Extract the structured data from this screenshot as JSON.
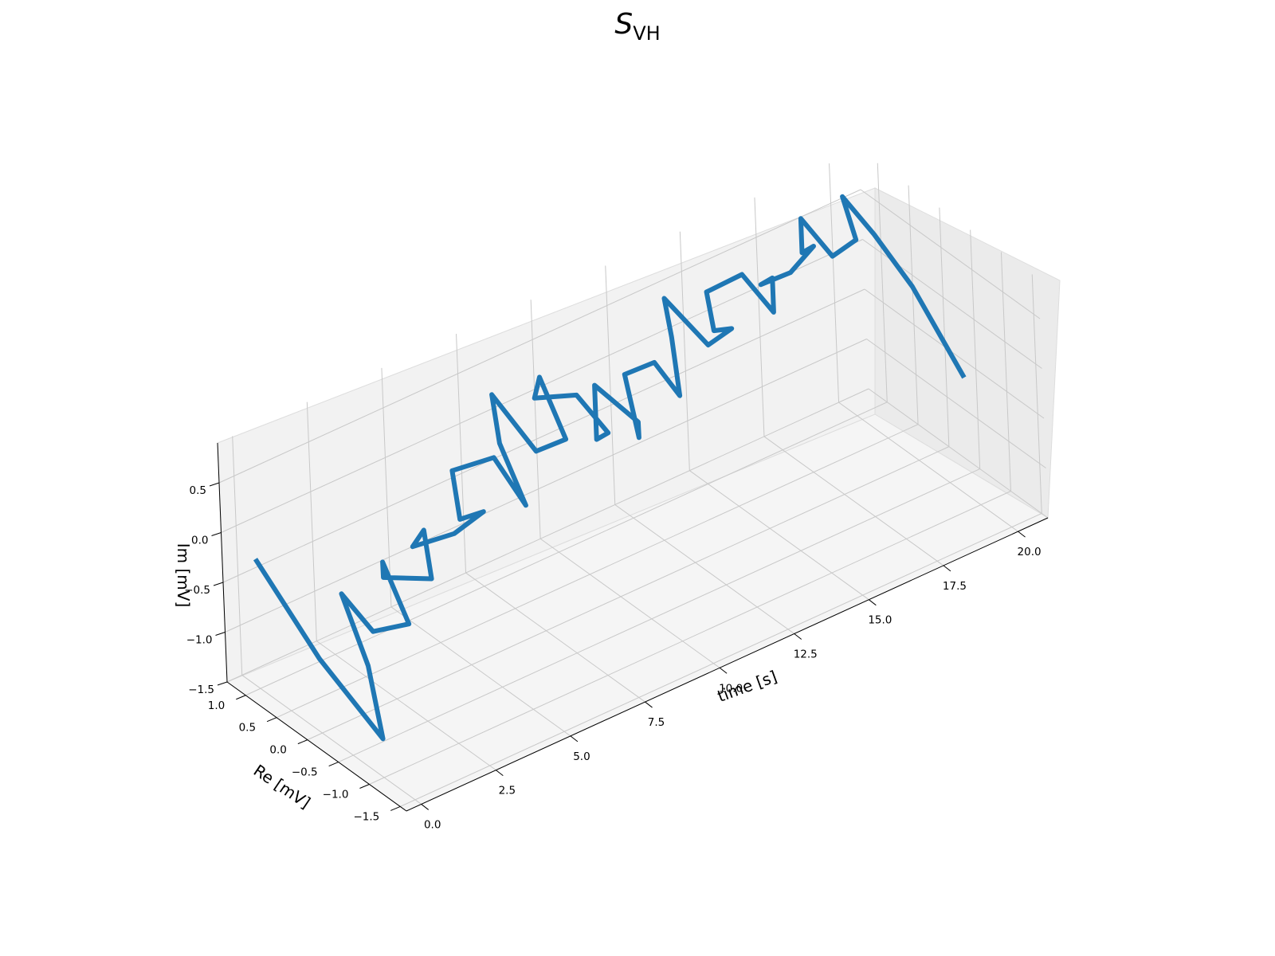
{
  "chart_data": {
    "type": "line3d",
    "title_main": "S",
    "title_sub": "VH",
    "xlabel": "time [s]",
    "ylabel": "Re [mV]",
    "zlabel": "Im [mV]",
    "xlim": [
      -0.5,
      21.0
    ],
    "ylim": [
      -1.6,
      1.3
    ],
    "zlim": [
      -1.5,
      0.9
    ],
    "xticks": [
      0.0,
      2.5,
      5.0,
      7.5,
      10.0,
      12.5,
      15.0,
      17.5,
      20.0
    ],
    "xtick_labels": [
      "0.0",
      "2.5",
      "5.0",
      "7.5",
      "10.0",
      "12.5",
      "15.0",
      "17.5",
      "20.0"
    ],
    "yticks": [
      1.0,
      0.5,
      0.0,
      -0.5,
      -1.0,
      -1.5
    ],
    "ytick_labels": [
      "1.0",
      "0.5",
      "0.0",
      "−0.5",
      "−1.0",
      "−1.5"
    ],
    "zticks": [
      0.5,
      0.0,
      -0.5,
      -1.0,
      -1.5
    ],
    "ztick_labels": [
      "0.5",
      "0.0",
      "−0.5",
      "−1.0",
      "−1.5"
    ],
    "grid": true,
    "line_color": "#1f77b4",
    "series": [
      {
        "t": [
          0.0,
          0.4,
          0.8,
          1.2,
          1.6,
          2.0,
          2.4,
          2.8,
          3.2,
          3.6,
          4.0,
          4.4,
          4.8,
          5.2,
          5.6,
          6.0,
          6.4,
          6.8,
          7.2,
          7.6,
          8.0,
          8.4,
          8.8,
          9.2,
          9.6,
          10.0,
          10.4,
          10.8,
          11.2,
          11.6,
          12.0,
          12.4,
          12.8,
          13.2,
          13.6,
          14.0,
          14.4,
          14.8,
          15.2,
          15.6,
          16.0,
          16.4,
          16.8,
          17.2,
          17.6,
          18.0,
          18.4,
          18.8,
          19.2,
          19.6,
          20.0,
          20.4,
          20.8
        ],
        "re": [
          1.0,
          0.2,
          -0.6,
          -0.2,
          0.4,
          0.1,
          -0.3,
          0.3,
          0.5,
          -0.1,
          0.2,
          0.6,
          0.1,
          -0.2,
          0.4,
          0.7,
          0.2,
          -0.1,
          0.5,
          0.8,
          0.3,
          0.0,
          0.6,
          0.9,
          0.4,
          0.1,
          0.5,
          0.7,
          0.2,
          0.4,
          0.8,
          0.5,
          0.3,
          0.6,
          0.9,
          0.4,
          0.2,
          0.7,
          1.0,
          0.6,
          0.3,
          0.5,
          0.9,
          0.6,
          0.4,
          0.8,
          1.0,
          0.7,
          0.5,
          0.9,
          0.6,
          0.2,
          -0.4
        ],
        "im": [
          -0.2,
          -0.9,
          -1.4,
          -0.9,
          -0.5,
          -0.8,
          -0.6,
          -0.3,
          -0.6,
          -0.4,
          -0.1,
          -0.5,
          -0.2,
          0.1,
          -0.3,
          0.0,
          0.3,
          -0.1,
          0.2,
          0.5,
          0.1,
          0.3,
          0.6,
          0.2,
          0.4,
          0.1,
          -0.2,
          0.2,
          0.0,
          -0.3,
          0.1,
          0.3,
          0.0,
          0.4,
          0.6,
          0.3,
          0.5,
          0.2,
          0.4,
          0.7,
          0.4,
          0.6,
          0.3,
          0.5,
          0.8,
          0.5,
          0.7,
          0.4,
          0.6,
          0.8,
          0.5,
          0.1,
          -0.6
        ]
      }
    ]
  }
}
